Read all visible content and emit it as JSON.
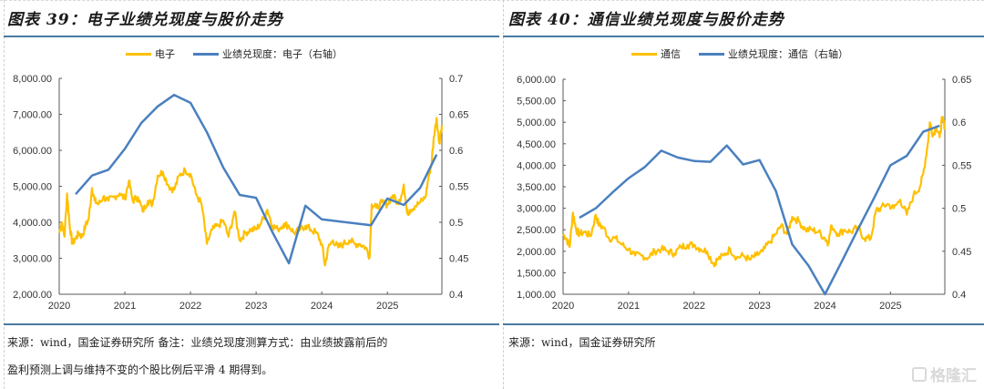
{
  "colors": {
    "price": "#FFC000",
    "ratio": "#4A80BF",
    "axis": "#595959",
    "rule": "#4a7aa0"
  },
  "watermark": "格隆汇",
  "chart_data": [
    {
      "type": "line",
      "title": "图表 39：电子业绩兑现度与股价走势",
      "legend": [
        "电子",
        "业绩兑现度：电子（右轴）"
      ],
      "legend_position": "top",
      "x_ticks": [
        "2020",
        "2021",
        "2022",
        "2023",
        "2024",
        "2025"
      ],
      "xlim": [
        2020,
        2025.83
      ],
      "y_left": {
        "ticks": [
          "2,000.00",
          "3,000.00",
          "4,000.00",
          "5,000.00",
          "6,000.00",
          "7,000.00",
          "8,000.00"
        ],
        "lim": [
          2000,
          8000
        ]
      },
      "y_right": {
        "ticks": [
          "0.4",
          "0.45",
          "0.5",
          "0.55",
          "0.6",
          "0.65",
          "0.7"
        ],
        "lim": [
          0.4,
          0.7
        ]
      },
      "series": [
        {
          "name": "电子",
          "axis": "left",
          "x": [
            2020.0,
            2020.04,
            2020.08,
            2020.12,
            2020.16,
            2020.2,
            2020.25,
            2020.3,
            2020.35,
            2020.4,
            2020.45,
            2020.5,
            2020.54,
            2020.6,
            2020.67,
            2020.75,
            2020.83,
            2020.92,
            2021.0,
            2021.06,
            2021.12,
            2021.2,
            2021.27,
            2021.35,
            2021.42,
            2021.5,
            2021.58,
            2021.67,
            2021.75,
            2021.83,
            2021.92,
            2022.0,
            2022.08,
            2022.17,
            2022.25,
            2022.33,
            2022.42,
            2022.5,
            2022.58,
            2022.67,
            2022.75,
            2022.83,
            2022.92,
            2023.0,
            2023.08,
            2023.17,
            2023.25,
            2023.33,
            2023.42,
            2023.5,
            2023.58,
            2023.67,
            2023.75,
            2023.83,
            2023.92,
            2024.0,
            2024.05,
            2024.1,
            2024.17,
            2024.25,
            2024.33,
            2024.42,
            2024.5,
            2024.58,
            2024.67,
            2024.73,
            2024.76,
            2024.83,
            2024.92,
            2025.0,
            2025.08,
            2025.17,
            2025.25,
            2025.3,
            2025.35,
            2025.42,
            2025.5,
            2025.58,
            2025.63,
            2025.67,
            2025.71,
            2025.75,
            2025.79,
            2025.83
          ],
          "values": [
            3700,
            4000,
            3600,
            4800,
            3900,
            3400,
            3550,
            3700,
            3600,
            3900,
            4100,
            4950,
            4600,
            4500,
            4700,
            4600,
            4700,
            4800,
            4650,
            5150,
            4600,
            4700,
            4300,
            4600,
            4500,
            5300,
            5400,
            5000,
            4900,
            5300,
            5450,
            5350,
            4800,
            4500,
            3400,
            3800,
            3900,
            4050,
            3600,
            4300,
            3500,
            3700,
            3800,
            3800,
            4000,
            4350,
            3900,
            3800,
            3950,
            3900,
            3700,
            3800,
            3900,
            3800,
            3700,
            3400,
            2800,
            3300,
            3500,
            3300,
            3400,
            3500,
            3400,
            3400,
            3300,
            3050,
            4500,
            4400,
            4550,
            4500,
            4750,
            4500,
            5050,
            4250,
            4350,
            4450,
            4550,
            4700,
            5300,
            5600,
            6400,
            6900,
            6200,
            6700
          ]
        },
        {
          "name": "业绩兑现度：电子（右轴）",
          "axis": "right",
          "x": [
            2020.25,
            2020.5,
            2020.75,
            2021.0,
            2021.25,
            2021.5,
            2021.75,
            2022.0,
            2022.25,
            2022.5,
            2022.75,
            2023.0,
            2023.25,
            2023.5,
            2023.75,
            2024.0,
            2024.75,
            2025.0,
            2025.25,
            2025.5,
            2025.75
          ],
          "values": [
            0.539,
            0.565,
            0.573,
            0.602,
            0.638,
            0.661,
            0.677,
            0.666,
            0.625,
            0.576,
            0.538,
            0.534,
            0.486,
            0.443,
            0.523,
            0.504,
            0.496,
            0.533,
            0.524,
            0.548,
            0.594
          ]
        }
      ]
    },
    {
      "type": "line",
      "title": "图表 40：通信业绩兑现度与股价走势",
      "legend": [
        "通信",
        "业绩兑现度：通信（右轴）"
      ],
      "legend_position": "top",
      "x_ticks": [
        "2020",
        "2021",
        "2022",
        "2023",
        "2024",
        "2025"
      ],
      "xlim": [
        2020,
        2025.83
      ],
      "y_left": {
        "ticks": [
          "1,000.00",
          "1,500.00",
          "2,000.00",
          "2,500.00",
          "3,000.00",
          "3,500.00",
          "4,000.00",
          "4,500.00",
          "5,000.00",
          "5,500.00",
          "6,000.00"
        ],
        "lim": [
          1000,
          6000
        ]
      },
      "y_right": {
        "ticks": [
          "0.4",
          "0.45",
          "0.5",
          "0.55",
          "0.6",
          "0.65"
        ],
        "lim": [
          0.4,
          0.65
        ]
      },
      "series": [
        {
          "name": "通信",
          "axis": "left",
          "x": [
            2020.0,
            2020.05,
            2020.1,
            2020.15,
            2020.2,
            2020.25,
            2020.33,
            2020.42,
            2020.5,
            2020.55,
            2020.62,
            2020.7,
            2020.8,
            2020.9,
            2021.0,
            2021.1,
            2021.2,
            2021.3,
            2021.4,
            2021.5,
            2021.6,
            2021.7,
            2021.8,
            2021.9,
            2022.0,
            2022.1,
            2022.2,
            2022.3,
            2022.35,
            2022.45,
            2022.55,
            2022.65,
            2022.75,
            2022.85,
            2022.95,
            2023.05,
            2023.15,
            2023.25,
            2023.33,
            2023.42,
            2023.5,
            2023.6,
            2023.7,
            2023.8,
            2023.9,
            2024.0,
            2024.05,
            2024.1,
            2024.2,
            2024.3,
            2024.4,
            2024.5,
            2024.6,
            2024.7,
            2024.78,
            2024.85,
            2024.95,
            2025.05,
            2025.15,
            2025.25,
            2025.35,
            2025.45,
            2025.5,
            2025.57,
            2025.6,
            2025.65,
            2025.7,
            2025.75,
            2025.79,
            2025.83
          ],
          "values": [
            2400,
            2300,
            2100,
            2900,
            2500,
            2400,
            2450,
            2350,
            2850,
            2600,
            2550,
            2300,
            2300,
            2150,
            2050,
            1900,
            1900,
            1850,
            2000,
            2050,
            2000,
            1950,
            2100,
            2150,
            2150,
            2050,
            2000,
            1700,
            1800,
            1900,
            2050,
            1850,
            1900,
            1800,
            1900,
            2000,
            2200,
            2400,
            2600,
            2400,
            2800,
            2700,
            2500,
            2500,
            2450,
            2300,
            2200,
            2600,
            2400,
            2500,
            2450,
            2550,
            2300,
            2300,
            2950,
            3000,
            3100,
            3000,
            3200,
            2850,
            3300,
            3500,
            3800,
            4500,
            5000,
            4700,
            4900,
            4650,
            5100,
            4900
          ]
        },
        {
          "name": "业绩兑现度：通信（右轴）",
          "axis": "right",
          "x": [
            2020.25,
            2020.5,
            2020.75,
            2021.0,
            2021.25,
            2021.5,
            2021.75,
            2022.0,
            2022.25,
            2022.5,
            2022.75,
            2023.0,
            2023.25,
            2023.5,
            2023.75,
            2024.0,
            2024.25,
            2024.5,
            2024.75,
            2025.0,
            2025.25,
            2025.5,
            2025.75
          ],
          "values": [
            0.489,
            0.5,
            0.518,
            0.535,
            0.548,
            0.567,
            0.559,
            0.555,
            0.554,
            0.573,
            0.551,
            0.556,
            0.52,
            0.458,
            0.433,
            0.4,
            0.437,
            0.475,
            0.512,
            0.55,
            0.561,
            0.589,
            0.596
          ]
        }
      ]
    }
  ],
  "notes": {
    "left_line1": "来源：wind，国金证券研究所 备注：业绩兑现度测算方式：由业绩披露前后的",
    "left_line2": "盈利预测上调与维持不变的个股比例后平滑 4 期得到。",
    "right_line1": "来源：wind，国金证券研究所"
  }
}
